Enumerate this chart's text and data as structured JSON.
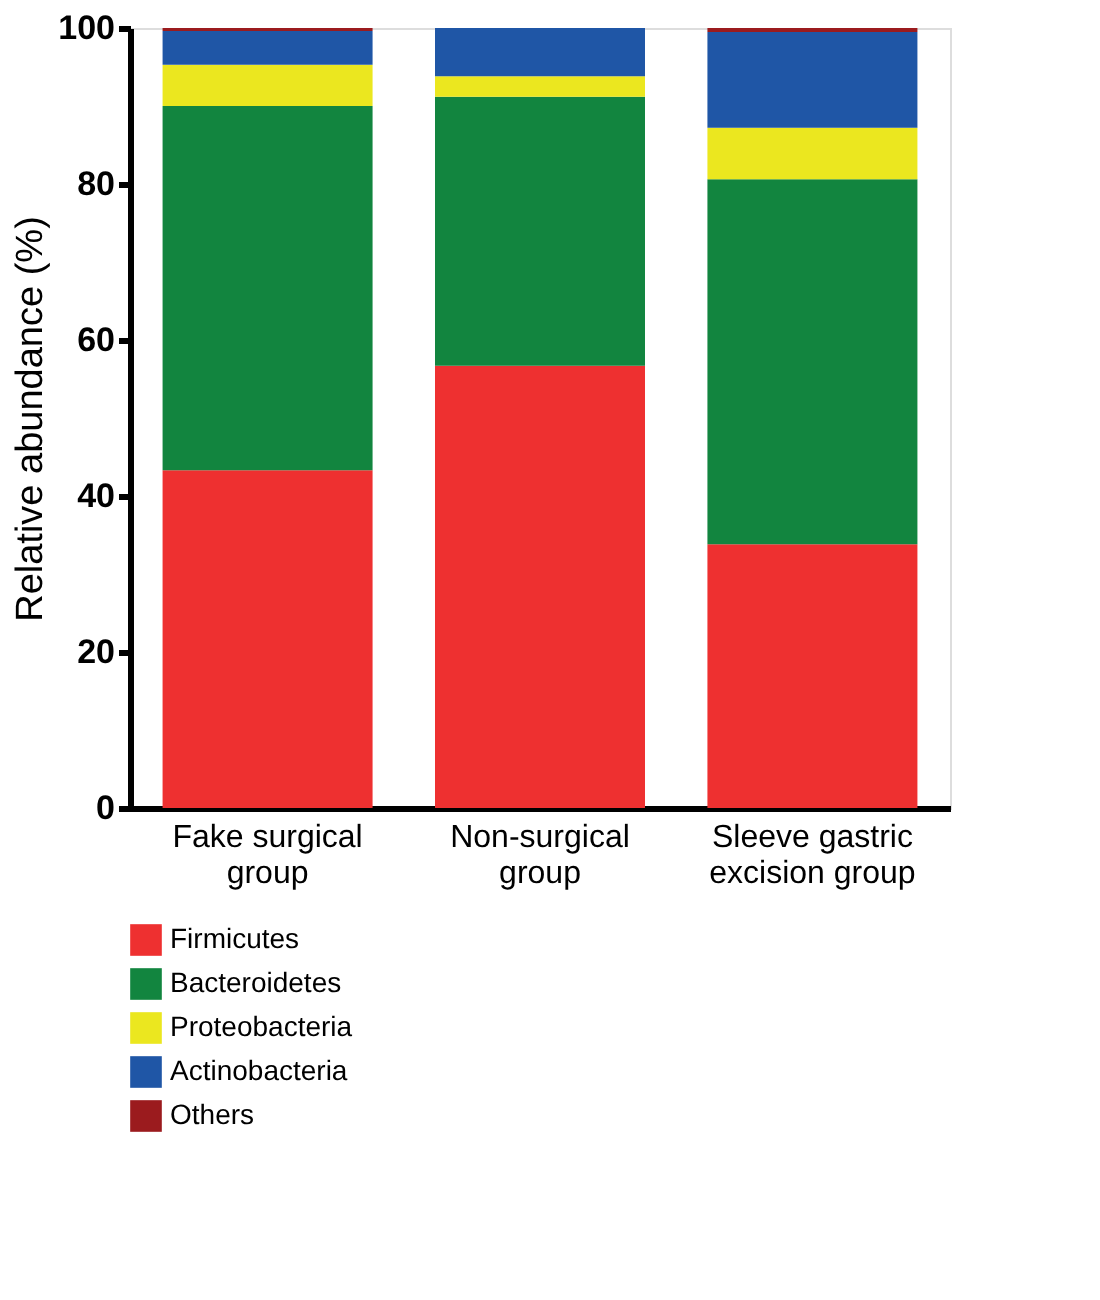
{
  "chart_data": {
    "type": "bar",
    "stacked": true,
    "ylabel": "Relative abundance (%)",
    "categories": [
      "Fake surgical\ngroup",
      "Non-surgical\ngroup",
      "Sleeve gastric\nexcision group"
    ],
    "series": [
      {
        "name": "Firmicutes",
        "color": "#ee3030",
        "values": [
          43.3,
          56.7,
          33.8
        ]
      },
      {
        "name": "Bacteroidetes",
        "color": "#12853f",
        "values": [
          46.7,
          34.5,
          46.8
        ]
      },
      {
        "name": "Proteobacteria",
        "color": "#ebe71f",
        "values": [
          5.3,
          2.6,
          6.6
        ]
      },
      {
        "name": "Actinobacteria",
        "color": "#1f56a6",
        "values": [
          4.3,
          6.2,
          12.3
        ]
      },
      {
        "name": "Others",
        "color": "#9b1b1e",
        "values": [
          0.4,
          0,
          0.5
        ]
      }
    ],
    "ylim": [
      0,
      100
    ],
    "yticks": [
      0,
      20,
      40,
      60,
      80,
      100
    ],
    "grid": false,
    "legend": "bottom"
  }
}
